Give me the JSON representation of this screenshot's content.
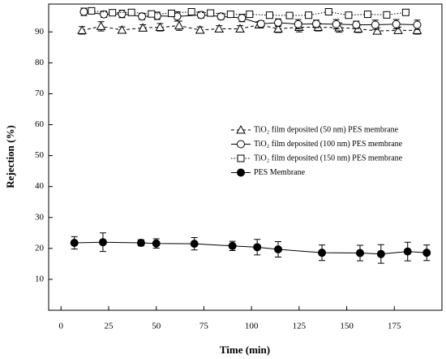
{
  "chart_data": {
    "type": "line",
    "x_label": "Time (min)",
    "y_label": "Rejection (%)",
    "xlim": [
      -6.5,
      200
    ],
    "ylim": [
      0,
      99
    ],
    "xticks": [
      0,
      25,
      50,
      75,
      100,
      125,
      150,
      175
    ],
    "yticks": [
      10,
      20,
      30,
      40,
      50,
      60,
      70,
      80,
      90
    ],
    "legend_position": "right",
    "series": [
      {
        "name": "TiO₂ film deposited (50 nm) PES membrane",
        "color": "#000000",
        "marker": "triangle",
        "filled": false,
        "line_style": "dashed",
        "x": [
          11,
          21,
          32,
          43,
          52,
          62,
          73,
          83,
          94,
          104,
          114,
          125,
          135,
          146,
          156,
          166,
          177,
          187
        ],
        "values": [
          90.5,
          91.8,
          90.6,
          91.3,
          91.5,
          92,
          90.6,
          91,
          91,
          92.3,
          91,
          91.5,
          91.5,
          91.4,
          91,
          90.3,
          90.5,
          90.5
        ],
        "errors": [
          1.2,
          1.5,
          1,
          1,
          1.2,
          1.5,
          1,
          1,
          1,
          1,
          1.2,
          1.5,
          1.2,
          1.5,
          1.2,
          1,
          1,
          1.2
        ]
      },
      {
        "name": "TiO₂ film deposited (100 nm) PES membrane",
        "color": "#000000",
        "marker": "circle",
        "filled": false,
        "line_style": "solid",
        "x": [
          12,
          22.5,
          32,
          42.5,
          50.5,
          61,
          73.5,
          84,
          95,
          105,
          114,
          124.5,
          134,
          144.5,
          155,
          165,
          176,
          187
        ],
        "values": [
          96.5,
          95.7,
          95.8,
          95,
          95.2,
          95,
          95.5,
          95,
          94.5,
          92.6,
          93,
          92.5,
          92.6,
          92.5,
          92.3,
          92.3,
          92.5,
          92.3
        ],
        "errors": [
          1.2,
          1,
          1.2,
          1,
          1.2,
          1.5,
          1,
          1,
          1.2,
          1,
          1.2,
          1.5,
          1.2,
          1.5,
          1.2,
          1.5,
          1.5,
          1.5
        ]
      },
      {
        "name": "TiO₂ film deposited (150 nm) PES membrane",
        "color": "#000000",
        "marker": "square",
        "filled": false,
        "line_style": "dotted",
        "x": [
          16,
          27,
          37,
          47.5,
          58,
          68.5,
          78.5,
          89,
          99,
          109.5,
          120,
          130,
          140.5,
          151,
          161,
          171,
          181
        ],
        "values": [
          96.8,
          96.2,
          96.3,
          95.8,
          96,
          96.5,
          96.1,
          95.7,
          95.7,
          95.4,
          95.3,
          95.4,
          96.5,
          95.4,
          95.7,
          95.5,
          96.3
        ],
        "errors": [
          0.5,
          0.5,
          0.8,
          0.5,
          0.8,
          0.5,
          0.5,
          0.5,
          0.5,
          0.5,
          0.5,
          0.5,
          0.5,
          0.8,
          0.5,
          0.5,
          0.5
        ]
      },
      {
        "name": "PES Membrane",
        "color": "#000000",
        "marker": "circle",
        "filled": true,
        "line_style": "solid",
        "x": [
          7,
          22,
          42,
          50,
          70,
          90,
          103,
          114,
          137,
          157,
          168,
          182,
          192
        ],
        "values": [
          21.8,
          22,
          21.8,
          21.6,
          21.5,
          20.8,
          20.4,
          19.7,
          18.6,
          18.5,
          18.2,
          19,
          18.6
        ],
        "errors": [
          2,
          3,
          1,
          1.5,
          2,
          1.5,
          2.5,
          2.5,
          2.5,
          2.5,
          3,
          3,
          2.5
        ]
      }
    ]
  }
}
